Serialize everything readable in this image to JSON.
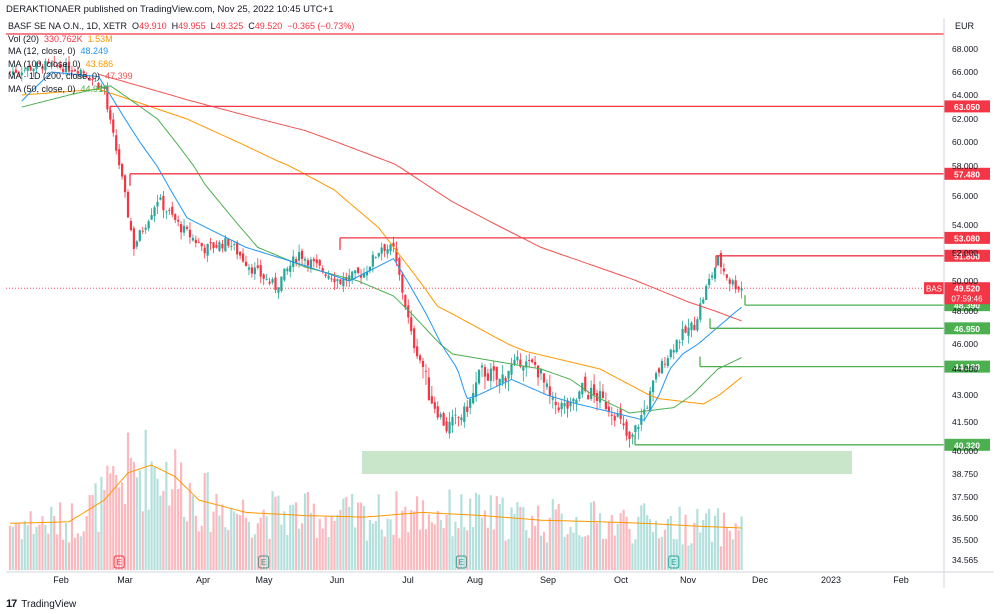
{
  "header": {
    "publisher": "DERAKTIONAER published on TradingView.com, Nov 25, 2022 10:45 UTC+1"
  },
  "legend": {
    "symbol": "BASF SE NA O.N., 1D, XETR",
    "o_label": "O",
    "o": "49.910",
    "h_label": "H",
    "h": "49.955",
    "l_label": "L",
    "l": "49.325",
    "c_label": "C",
    "c": "49.520",
    "change": "−0.365 (−0.73%)",
    "vol": "Vol (20)",
    "vol_v1": "330.762K",
    "vol_v2": "1.53M",
    "ma_short": "MA (12, close, 0)",
    "ma_short_val": "48.249",
    "ma100": "MA (100, close, 0)",
    "ma100_val": "43.686",
    "ma200": "MA · 1D (200, close, 0)",
    "ma200_val": "47.399",
    "ma50": "MA (50, close, 0)",
    "ma50_val": "44.915"
  },
  "footer": {
    "logo": "17",
    "brand": "TradingView"
  },
  "colors": {
    "up": "#26a69a",
    "down": "#f23645",
    "resistance": "#f23645",
    "support": "#4caf50",
    "ma_short": "#2196f3",
    "ma50": "#4caf50",
    "ma100": "#ff9800",
    "ma200": "#ef5350",
    "zone": "#a5d6a7",
    "volume_line": "#ff9800"
  },
  "chart_data": {
    "type": "candlestick",
    "title": "BASF SE NA O.N., 1D, XETR",
    "currency": "EUR",
    "ylim": [
      34.0,
      70.0
    ],
    "y_ticks": [
      "68.000",
      "66.000",
      "64.000",
      "62.000",
      "60.000",
      "58.000",
      "56.000",
      "54.000",
      "52.000",
      "50.000",
      "48.000",
      "46.000",
      "44.000",
      "43.000",
      "41.500",
      "40.000",
      "38.750",
      "37.500",
      "36.500",
      "35.500",
      "34.565"
    ],
    "x_ticks": [
      "Feb",
      "Mar",
      "Apr",
      "May",
      "Jun",
      "Jul",
      "Aug",
      "Sep",
      "Oct",
      "Nov",
      "Dec",
      "2023",
      "Feb"
    ],
    "price_labels": [
      {
        "value": 63.05,
        "text": "63.050",
        "kind": "resistance"
      },
      {
        "value": 57.48,
        "text": "57.480",
        "kind": "resistance"
      },
      {
        "value": 53.08,
        "text": "53.080",
        "kind": "resistance"
      },
      {
        "value": 51.8,
        "text": "51.800",
        "kind": "resistance"
      },
      {
        "value": 48.39,
        "text": "48.390",
        "kind": "support"
      },
      {
        "value": 46.95,
        "text": "46.950",
        "kind": "support"
      },
      {
        "value": 44.19,
        "text": "44.190",
        "kind": "support"
      },
      {
        "value": 40.32,
        "text": "40.320",
        "kind": "support"
      }
    ],
    "last_price": {
      "value": 49.52,
      "text": "49.520",
      "symbol": "BAS",
      "countdown": "07:59:46"
    },
    "support_zone": [
      38.75,
      40.0
    ],
    "anchors": [
      [
        0,
        66.0
      ],
      [
        12,
        66.6
      ],
      [
        24,
        66.2
      ],
      [
        32,
        64.5
      ],
      [
        33,
        62.8
      ],
      [
        38,
        57.0
      ],
      [
        42,
        52.5
      ],
      [
        50,
        55.8
      ],
      [
        58,
        53.8
      ],
      [
        66,
        52.3
      ],
      [
        74,
        52.8
      ],
      [
        82,
        50.9
      ],
      [
        90,
        49.6
      ],
      [
        98,
        52.0
      ],
      [
        104,
        51.0
      ],
      [
        112,
        50.0
      ],
      [
        120,
        50.6
      ],
      [
        126,
        52.5
      ],
      [
        130,
        52.2
      ],
      [
        136,
        46.5
      ],
      [
        142,
        43.0
      ],
      [
        148,
        41.2
      ],
      [
        154,
        42.0
      ],
      [
        160,
        44.0
      ],
      [
        166,
        43.5
      ],
      [
        172,
        44.6
      ],
      [
        178,
        44.3
      ],
      [
        184,
        42.5
      ],
      [
        190,
        42.3
      ],
      [
        194,
        43.2
      ],
      [
        200,
        42.8
      ],
      [
        206,
        41.8
      ],
      [
        210,
        40.4
      ],
      [
        214,
        41.8
      ],
      [
        220,
        44.0
      ],
      [
        226,
        46.2
      ],
      [
        232,
        47.2
      ],
      [
        236,
        49.5
      ],
      [
        240,
        51.5
      ],
      [
        244,
        50.0
      ],
      [
        248,
        49.5
      ]
    ],
    "ma_short": [
      [
        4,
        63.5
      ],
      [
        14,
        66.0
      ],
      [
        30,
        65.6
      ],
      [
        44,
        60.0
      ],
      [
        60,
        54.5
      ],
      [
        80,
        52.4
      ],
      [
        100,
        51.1
      ],
      [
        115,
        50.0
      ],
      [
        130,
        51.6
      ],
      [
        142,
        47.5
      ],
      [
        155,
        42.8
      ],
      [
        170,
        43.6
      ],
      [
        190,
        42.6
      ],
      [
        205,
        42.0
      ],
      [
        215,
        41.6
      ],
      [
        228,
        45.2
      ],
      [
        248,
        48.25
      ]
    ],
    "ma50": [
      [
        4,
        63.0
      ],
      [
        20,
        64.0
      ],
      [
        34,
        64.8
      ],
      [
        50,
        62.0
      ],
      [
        66,
        56.8
      ],
      [
        84,
        52.4
      ],
      [
        100,
        51.0
      ],
      [
        118,
        50.0
      ],
      [
        130,
        49.0
      ],
      [
        150,
        45.2
      ],
      [
        170,
        44.4
      ],
      [
        190,
        43.6
      ],
      [
        210,
        42.0
      ],
      [
        225,
        42.3
      ],
      [
        248,
        44.915
      ]
    ],
    "ma100": [
      [
        4,
        64.0
      ],
      [
        30,
        64.5
      ],
      [
        60,
        62.0
      ],
      [
        90,
        58.5
      ],
      [
        110,
        56.4
      ],
      [
        125,
        53.8
      ],
      [
        145,
        48.3
      ],
      [
        175,
        45.4
      ],
      [
        200,
        44.0
      ],
      [
        220,
        42.8
      ],
      [
        235,
        42.5
      ],
      [
        248,
        43.686
      ]
    ],
    "ma200": [
      [
        30,
        65.8
      ],
      [
        60,
        63.6
      ],
      [
        100,
        61.0
      ],
      [
        130,
        58.2
      ],
      [
        150,
        55.6
      ],
      [
        180,
        52.4
      ],
      [
        210,
        50.2
      ],
      [
        230,
        48.6
      ],
      [
        248,
        47.399
      ]
    ],
    "volume_scale_max": 1800,
    "volume_ma": [
      [
        0,
        600
      ],
      [
        20,
        620
      ],
      [
        32,
        900
      ],
      [
        40,
        1250
      ],
      [
        48,
        1350
      ],
      [
        56,
        1200
      ],
      [
        64,
        900
      ],
      [
        80,
        740
      ],
      [
        100,
        700
      ],
      [
        120,
        680
      ],
      [
        140,
        740
      ],
      [
        160,
        700
      ],
      [
        180,
        640
      ],
      [
        200,
        620
      ],
      [
        215,
        600
      ],
      [
        235,
        560
      ],
      [
        248,
        540
      ]
    ],
    "earnings_markers": [
      37,
      86,
      153,
      225
    ]
  }
}
